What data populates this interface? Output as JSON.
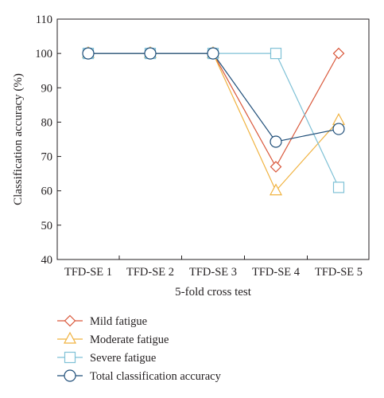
{
  "chart_data": {
    "type": "line",
    "title": "",
    "xlabel": "5-fold cross test",
    "ylabel": "Classification accuracy (%)",
    "categories": [
      "TFD-SE 1",
      "TFD-SE 2",
      "TFD-SE 3",
      "TFD-SE 4",
      "TFD-SE 5"
    ],
    "ylim": [
      40,
      110
    ],
    "yticks": [
      40,
      50,
      60,
      70,
      80,
      90,
      100,
      110
    ],
    "grid": false,
    "legend_position": "below",
    "series": [
      {
        "name": "Mild fatigue",
        "marker": "diamond",
        "color": "#d9573a",
        "values": [
          100,
          100,
          100,
          67,
          100
        ]
      },
      {
        "name": "Moderate fatigue",
        "marker": "triangle",
        "color": "#f0b23f",
        "values": [
          100,
          100,
          100,
          60,
          80.5
        ]
      },
      {
        "name": "Severe fatigue",
        "marker": "square",
        "color": "#7fc1d6",
        "values": [
          100,
          100,
          100,
          100,
          61
        ]
      },
      {
        "name": "Total classification accuracy",
        "marker": "circle",
        "color": "#1f4e79",
        "values": [
          100,
          100,
          100,
          74.3,
          78
        ]
      }
    ]
  }
}
